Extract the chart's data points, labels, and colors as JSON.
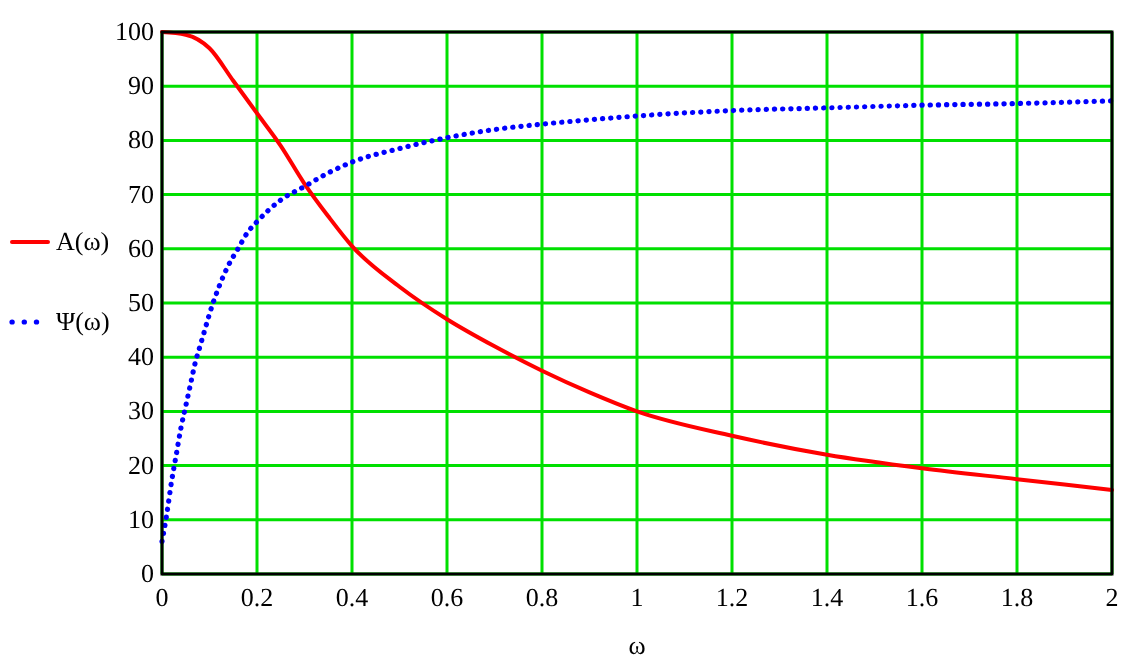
{
  "chart_data": {
    "type": "line",
    "xlabel": "ω",
    "xlim": [
      0,
      2
    ],
    "xticks": [
      0,
      0.2,
      0.4,
      0.6,
      0.8,
      1,
      1.2,
      1.4,
      1.6,
      1.8,
      2
    ],
    "ylim": [
      0,
      100
    ],
    "yticks": [
      0,
      10,
      20,
      30,
      40,
      50,
      60,
      70,
      80,
      90,
      100
    ],
    "grid": true,
    "legend": "left",
    "marker": "none",
    "series": [
      {
        "name": "A(ω)",
        "color": "#ff0000",
        "line_style": "solid",
        "x": [
          0,
          0.05,
          0.1,
          0.15,
          0.2,
          0.25,
          0.3,
          0.35,
          0.4,
          0.5,
          0.6,
          0.7,
          0.8,
          0.9,
          1,
          1.2,
          1.4,
          1.6,
          1.8,
          2
        ],
        "values": [
          100,
          99.5,
          97,
          91,
          85,
          79,
          72,
          66,
          60.5,
          53,
          47,
          42,
          37.5,
          33.5,
          30,
          25.5,
          22,
          19.5,
          17.5,
          15.5
        ]
      },
      {
        "name": "Ψ(ω)",
        "color": "#0000ff",
        "line_style": "dotted",
        "x": [
          0,
          0.01,
          0.02,
          0.03,
          0.04,
          0.05,
          0.06,
          0.07,
          0.08,
          0.09,
          0.1,
          0.12,
          0.14,
          0.16,
          0.18,
          0.2,
          0.25,
          0.3,
          0.35,
          0.4,
          0.5,
          0.6,
          0.7,
          0.8,
          0.9,
          1,
          1.2,
          1.4,
          1.6,
          1.8,
          2
        ],
        "values": [
          6,
          11,
          17,
          22,
          27,
          31,
          35,
          39,
          42,
          45,
          48,
          53,
          57,
          60,
          63,
          65,
          69,
          71.5,
          74,
          76,
          78.5,
          80.5,
          82,
          83,
          83.8,
          84.5,
          85.5,
          86,
          86.5,
          86.8,
          87.3
        ]
      }
    ]
  }
}
